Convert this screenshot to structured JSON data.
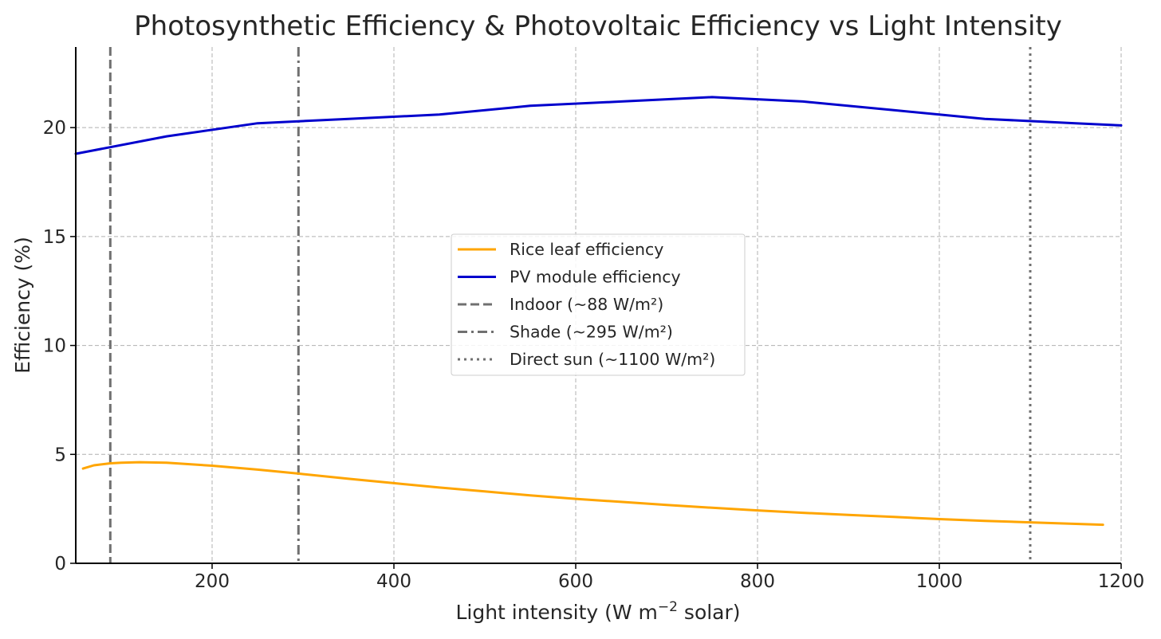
{
  "chart_data": {
    "type": "line",
    "title": "Photosynthetic Efficiency & Photovoltaic Efficiency vs Light Intensity",
    "xlabel": "Light intensity (W m",
    "xlabel_sup": "−2",
    "xlabel_suffix": " solar)",
    "ylabel": "Efficiency (%)",
    "xlim": [
      50,
      1200
    ],
    "ylim": [
      0,
      23.7
    ],
    "xticks": [
      200,
      400,
      600,
      800,
      1000,
      1200
    ],
    "yticks": [
      0,
      5,
      10,
      15,
      20
    ],
    "grid": true,
    "legend_position": "center",
    "series": [
      {
        "name": "Rice leaf efficiency",
        "color": "#ffa500",
        "dash": "solid",
        "x": [
          58,
          70,
          88,
          100,
          120,
          150,
          200,
          250,
          295,
          350,
          400,
          450,
          500,
          550,
          600,
          650,
          700,
          750,
          800,
          850,
          900,
          950,
          1000,
          1050,
          1100,
          1150,
          1180
        ],
        "y": [
          4.35,
          4.5,
          4.59,
          4.62,
          4.64,
          4.62,
          4.48,
          4.3,
          4.12,
          3.88,
          3.68,
          3.48,
          3.3,
          3.12,
          2.96,
          2.82,
          2.68,
          2.55,
          2.43,
          2.32,
          2.22,
          2.13,
          2.03,
          1.95,
          1.88,
          1.81,
          1.77
        ]
      },
      {
        "name": "PV module efficiency",
        "color": "#0000cd",
        "dash": "solid",
        "x": [
          50,
          150,
          250,
          350,
          450,
          550,
          650,
          750,
          850,
          950,
          1050,
          1150,
          1200
        ],
        "y": [
          18.8,
          19.6,
          20.2,
          20.4,
          20.6,
          21.0,
          21.2,
          21.4,
          21.2,
          20.8,
          20.4,
          20.2,
          20.1
        ]
      }
    ],
    "reference_lines": [
      {
        "name": "Indoor (~88 W/m²)",
        "x": 88,
        "color": "#707070",
        "dash": "dashed"
      },
      {
        "name": "Shade (~295 W/m²)",
        "x": 295,
        "color": "#707070",
        "dash": "dashdot"
      },
      {
        "name": "Direct sun (~1100 W/m²)",
        "x": 1100,
        "color": "#707070",
        "dash": "dotted"
      }
    ]
  }
}
